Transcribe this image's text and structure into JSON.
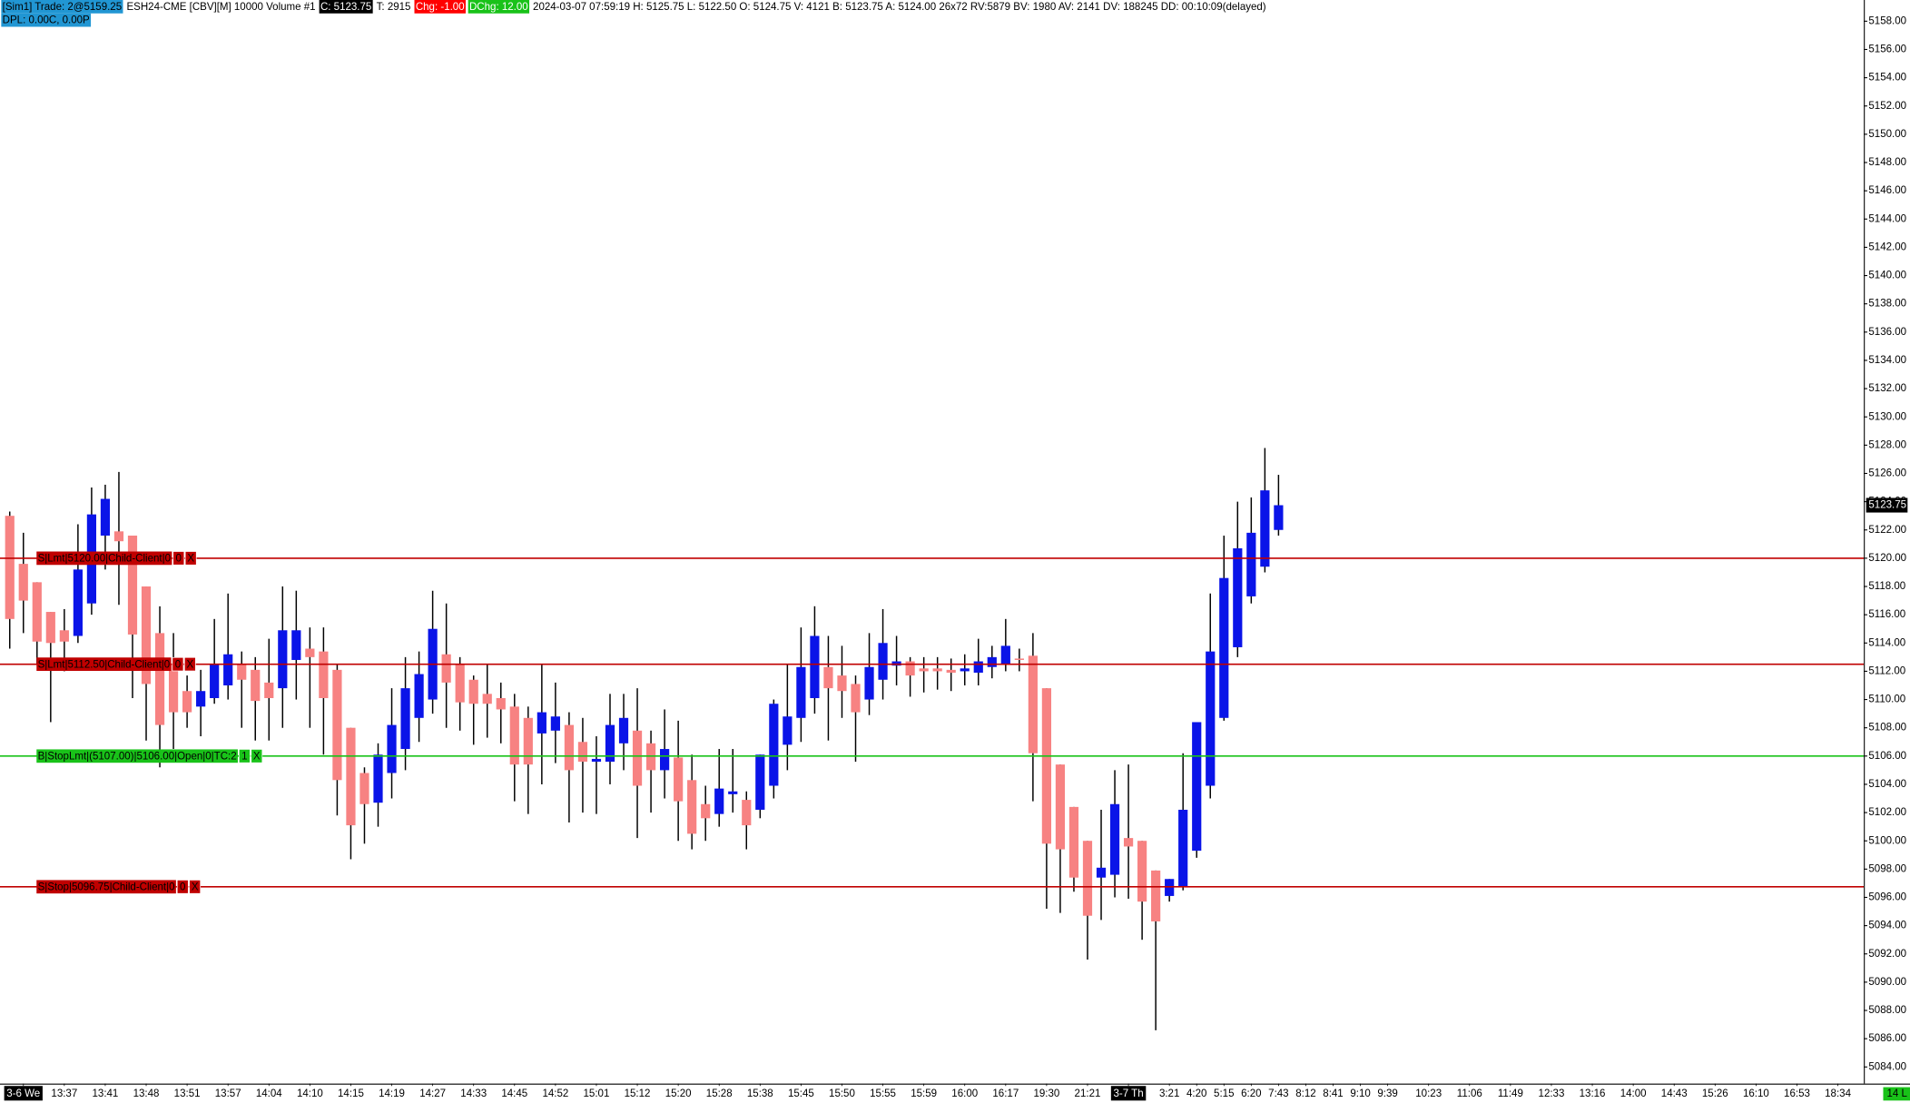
{
  "header": {
    "items": [
      {
        "text": "[Sim1]  Trade: 2@5159.25",
        "bg": "#2196d3",
        "fg": "#000000"
      },
      {
        "text": "ESH24-CME [CBV][M]  10000 Volume #1",
        "bg": "#ffffff",
        "fg": "#000000"
      },
      {
        "text": "C: 5123.75",
        "bg": "#000000",
        "fg": "#ffffff"
      },
      {
        "text": "T: 2915",
        "bg": "#ffffff",
        "fg": "#000000"
      },
      {
        "text": "Chg: -1.00",
        "bg": "#ff0000",
        "fg": "#ffffff"
      },
      {
        "text": "DChg: 12.00",
        "bg": "#19c219",
        "fg": "#ffffff"
      },
      {
        "text": "2024-03-07 07:59:19 H: 5125.75 L: 5122.50 O: 5124.75 V: 4121 B: 5123.75 A: 5124.00 26x72 RV:5879 BV: 1980 AV: 2141 DV: 188245 DD: 00:10:09(delayed)",
        "bg": "#ffffff",
        "fg": "#000000"
      }
    ],
    "line2": {
      "text": "DPL: 0.00C, 0.00P",
      "bg": "#2196d3",
      "fg": "#000000"
    }
  },
  "chart_data": {
    "type": "candlestick",
    "up_color": "#0a14e8",
    "down_color": "#f78282",
    "ylim": [
      5083,
      5159.5
    ],
    "yticks": [
      {
        "value": 5084,
        "label": "5084.00"
      },
      {
        "value": 5086,
        "label": "5086.00"
      },
      {
        "value": 5088,
        "label": "5088.00"
      },
      {
        "value": 5090,
        "label": "5090.00"
      },
      {
        "value": 5092,
        "label": "5092.00"
      },
      {
        "value": 5094,
        "label": "5094.00"
      },
      {
        "value": 5096,
        "label": "5096.00"
      },
      {
        "value": 5098,
        "label": "5098.00"
      },
      {
        "value": 5100,
        "label": "5100.00"
      },
      {
        "value": 5102,
        "label": "5102.00"
      },
      {
        "value": 5104,
        "label": "5104.00"
      },
      {
        "value": 5106,
        "label": "5106.00"
      },
      {
        "value": 5108,
        "label": "5108.00"
      },
      {
        "value": 5110,
        "label": "5110.00"
      },
      {
        "value": 5112,
        "label": "5112.00"
      },
      {
        "value": 5114,
        "label": "5114.00"
      },
      {
        "value": 5116,
        "label": "5116.00"
      },
      {
        "value": 5118,
        "label": "5118.00"
      },
      {
        "value": 5120,
        "label": "5120.00"
      },
      {
        "value": 5122,
        "label": "5122.00"
      },
      {
        "value": 5124,
        "label": "5124.00"
      },
      {
        "value": 5126,
        "label": "5126.00"
      },
      {
        "value": 5128,
        "label": "5128.00"
      },
      {
        "value": 5130,
        "label": "5130.00"
      },
      {
        "value": 5132,
        "label": "5132.00"
      },
      {
        "value": 5134,
        "label": "5134.00"
      },
      {
        "value": 5136,
        "label": "5136.00"
      },
      {
        "value": 5138,
        "label": "5138.00"
      },
      {
        "value": 5140,
        "label": "5140.00"
      },
      {
        "value": 5142,
        "label": "5142.00"
      },
      {
        "value": 5144,
        "label": "5144.00"
      },
      {
        "value": 5146,
        "label": "5146.00"
      },
      {
        "value": 5148,
        "label": "5148.00"
      },
      {
        "value": 5150,
        "label": "5150.00"
      },
      {
        "value": 5152,
        "label": "5152.00"
      },
      {
        "value": 5154,
        "label": "5154.00"
      },
      {
        "value": 5156,
        "label": "5156.00"
      },
      {
        "value": 5158,
        "label": "5158.00"
      }
    ],
    "categories": [
      null,
      "3-6 We",
      null,
      null,
      "13:37",
      null,
      null,
      "13:41",
      null,
      null,
      "13:48",
      null,
      null,
      "13:51",
      null,
      null,
      "13:57",
      null,
      null,
      "14:04",
      null,
      null,
      "14:10",
      null,
      null,
      "14:15",
      null,
      null,
      "14:19",
      null,
      null,
      "14:27",
      null,
      null,
      "14:33",
      null,
      null,
      "14:45",
      null,
      null,
      "14:52",
      null,
      null,
      "15:01",
      null,
      null,
      "15:12",
      null,
      null,
      "15:20",
      null,
      null,
      "15:28",
      null,
      null,
      "15:38",
      null,
      null,
      "15:45",
      null,
      null,
      "15:50",
      null,
      null,
      "15:55",
      null,
      null,
      "15:59",
      null,
      null,
      "16:00",
      null,
      null,
      "16:17",
      null,
      null,
      "19:30",
      null,
      null,
      "21:21",
      null,
      null,
      "3-7 Th",
      null,
      null,
      "3:21",
      null,
      "4:20",
      null,
      "5:15",
      null,
      "6:20",
      null,
      "7:43",
      null,
      "8:12",
      null,
      "8:41",
      null,
      "9:10",
      null,
      "9:39",
      null,
      null,
      "10:23",
      null,
      null,
      "11:06",
      null,
      null,
      "11:49",
      null,
      null,
      "12:33",
      null,
      null,
      "13:16",
      null,
      null,
      "14:00",
      null,
      null,
      "14:43",
      null,
      null,
      "15:26",
      null,
      null,
      "16:10",
      null,
      null,
      "16:53",
      null,
      null,
      "18:34"
    ],
    "open": [
      5123,
      5119.6,
      5118.3,
      5116.2,
      5114.9,
      5114.5,
      5116.8,
      5121.6,
      5121.9,
      5121.6,
      5118,
      5114.7,
      5112.5,
      5110.6,
      5109.5,
      5110.1,
      5111,
      5112.5,
      5112.1,
      5111.2,
      5110.8,
      5112.8,
      5113.6,
      5113.4,
      5112.1,
      5108,
      5104.8,
      5102.7,
      5104.8,
      5106.5,
      5108.7,
      5110,
      5113.2,
      5112.5,
      5111.4,
      5110.4,
      5110.1,
      5109.5,
      5108.7,
      5107.6,
      5107.8,
      5108.2,
      5107,
      5105.6,
      5105.6,
      5106.9,
      5107.8,
      5106.9,
      5105,
      5105.9,
      5104.3,
      5102.6,
      5101.9,
      5103.3,
      5102.9,
      5102.2,
      5103.9,
      5106.8,
      5108.7,
      5110.1,
      5112.3,
      5111.7,
      5111.1,
      5110,
      5111.4,
      5112.4,
      5112.7,
      5112.2,
      5112.2,
      5112.1,
      5112,
      5111.9,
      5112.3,
      5112.5,
      5112.9,
      5113.1,
      5110.8,
      5105.4,
      5102.4,
      5100,
      5097.4,
      5097.6,
      5100.2,
      5100,
      5097.9,
      5096.1,
      5096.8,
      5099.3,
      5103.9,
      5108.7,
      5113.7,
      5117.3,
      5119.4,
      5122,
      null,
      null,
      null,
      null,
      null,
      null,
      null,
      null,
      null,
      null,
      null,
      null,
      null,
      null,
      null,
      null,
      null,
      null,
      null,
      null,
      null,
      null,
      null,
      null,
      null,
      null,
      null,
      null,
      null,
      null,
      null,
      null,
      null,
      null,
      null,
      null,
      null,
      null,
      null,
      null,
      null
    ],
    "high": [
      5123.3,
      5121.8,
      5118.3,
      5116.2,
      5116.4,
      5122.4,
      5125,
      5125.2,
      5126.1,
      5121.6,
      5118,
      5116.6,
      5114.7,
      5111.7,
      5112.1,
      5115.7,
      5117.5,
      5113.4,
      5113,
      5114.3,
      5118,
      5117.7,
      5115.1,
      5115.1,
      5112.5,
      5108,
      5105.2,
      5106.9,
      5110.8,
      5113,
      5113.4,
      5117.7,
      5116.8,
      5113,
      5111.7,
      5112.5,
      5111.2,
      5110.4,
      5109.5,
      5112.5,
      5111.2,
      5109.1,
      5108.7,
      5107.4,
      5110.4,
      5110.4,
      5110.8,
      5107.8,
      5109.3,
      5108.5,
      5106.1,
      5103.9,
      5106.5,
      5106.5,
      5103.5,
      5106.1,
      5110,
      5112.5,
      5115.1,
      5116.6,
      5114.5,
      5113.8,
      5111.7,
      5114.7,
      5116.4,
      5114.5,
      5113,
      5113,
      5113,
      5112.9,
      5113.2,
      5114.3,
      5113.8,
      5115.7,
      5113.6,
      5114.7,
      5110.8,
      5105.4,
      5102.4,
      5100,
      5102.2,
      5105,
      5105.4,
      5100,
      5097.9,
      5097.3,
      5106.2,
      5108.4,
      5117.5,
      5121.6,
      5124,
      5124.3,
      5127.8,
      5125.9,
      null,
      null,
      null,
      null,
      null,
      null,
      null,
      null,
      null,
      null,
      null,
      null,
      null,
      null,
      null,
      null,
      null,
      null,
      null,
      null,
      null,
      null,
      null,
      null,
      null,
      null,
      null,
      null,
      null,
      null,
      null,
      null,
      null,
      null,
      null,
      null,
      null,
      null,
      null,
      null,
      null
    ],
    "low": [
      5113.6,
      5114.7,
      5112.5,
      5108.4,
      5112,
      5114,
      5116,
      5119.2,
      5116.7,
      5110.1,
      5107.1,
      5105.2,
      5106.5,
      5108,
      5107.4,
      5109.7,
      5110,
      5108,
      5107.1,
      5107.1,
      5108,
      5110,
      5108,
      5106.1,
      5101.8,
      5098.7,
      5099.8,
      5101,
      5103,
      5105,
      5107,
      5109,
      5108,
      5107.8,
      5106.8,
      5107.3,
      5106.9,
      5102.8,
      5101.9,
      5104,
      5105.5,
      5101.3,
      5102,
      5101.9,
      5104,
      5105,
      5100.2,
      5102,
      5103,
      5100,
      5099.4,
      5100,
      5101,
      5102,
      5099.4,
      5101.6,
      5103,
      5105,
      5107,
      5109,
      5107.1,
      5108.7,
      5105.6,
      5108.9,
      5110,
      5111,
      5110.2,
      5110.5,
      5110.7,
      5110.6,
      5111,
      5111,
      5111.5,
      5112,
      5112,
      5102.8,
      5095.2,
      5094.9,
      5096.4,
      5091.6,
      5094.4,
      5096,
      5095.9,
      5093,
      5086.6,
      5095.7,
      5096.5,
      5098.8,
      5103,
      5108.5,
      5113,
      5116.8,
      5119,
      5121.6,
      null,
      null,
      null,
      null,
      null,
      null,
      null,
      null,
      null,
      null,
      null,
      null,
      null,
      null,
      null,
      null,
      null,
      null,
      null,
      null,
      null,
      null,
      null,
      null,
      null,
      null,
      null,
      null,
      null,
      null,
      null,
      null,
      null,
      null,
      null,
      null,
      null,
      null,
      null,
      null,
      null
    ],
    "close": [
      5115.7,
      5117,
      5114.1,
      5114,
      5114.1,
      5119.2,
      5123.1,
      5124.2,
      5121.2,
      5114.6,
      5111.1,
      5108.2,
      5109.1,
      5109.1,
      5110.6,
      5112.5,
      5113.2,
      5111.4,
      5109.9,
      5110.1,
      5114.9,
      5114.9,
      5113,
      5110.1,
      5104.3,
      5101.1,
      5102.6,
      5106.1,
      5108.2,
      5110.8,
      5111.8,
      5115,
      5111.2,
      5109.8,
      5109.7,
      5109.7,
      5109.3,
      5105.4,
      5105.4,
      5109.1,
      5108.8,
      5105,
      5105.6,
      5105.8,
      5108.2,
      5108.7,
      5103.9,
      5105,
      5106.5,
      5102.8,
      5100.5,
      5101.6,
      5103.7,
      5103.5,
      5101.1,
      5106.1,
      5109.7,
      5108.8,
      5112.3,
      5114.5,
      5110.8,
      5110.6,
      5109.1,
      5112.3,
      5114,
      5112.7,
      5111.7,
      5112,
      5112,
      5111.9,
      5112.2,
      5112.7,
      5113,
      5113.8,
      5112.8,
      5106.2,
      5099.8,
      5099.4,
      5097.4,
      5094.7,
      5098.1,
      5102.6,
      5099.6,
      5095.7,
      5094.3,
      5097.3,
      5102.2,
      5108.4,
      5113.4,
      5118.6,
      5120.7,
      5121.8,
      5124.8,
      5123.75,
      null,
      null,
      null,
      null,
      null,
      null,
      null,
      null,
      null,
      null,
      null,
      null,
      null,
      null,
      null,
      null,
      null,
      null,
      null,
      null,
      null,
      null,
      null,
      null,
      null,
      null,
      null,
      null,
      null,
      null,
      null,
      null,
      null,
      null,
      null,
      null,
      null,
      null,
      null,
      null,
      null
    ],
    "last_price": 5123.75,
    "orders": [
      {
        "label": "S|Lmt|5120.00|Child-Client|0",
        "price": 5120,
        "color": "#c00000",
        "box_color": "#c00000",
        "buttons": [
          "0",
          "X"
        ]
      },
      {
        "label": "S|Lmt|5112.50|Child-Client|0",
        "price": 5112.5,
        "color": "#c00000",
        "box_color": "#c00000",
        "buttons": [
          "0",
          "X"
        ]
      },
      {
        "label": "B|StopLmt|(5107.00)|5106.00|Open|0|TC:2",
        "price": 5106,
        "color": "#19c219",
        "box_color": "#19c219",
        "buttons": [
          "1",
          "X"
        ]
      },
      {
        "label": "S|Stop|5096.75|Child-Client|0",
        "price": 5096.75,
        "color": "#c00000",
        "box_color": "#c00000",
        "buttons": [
          "0",
          "X"
        ]
      }
    ],
    "corner_label": "14 L"
  }
}
